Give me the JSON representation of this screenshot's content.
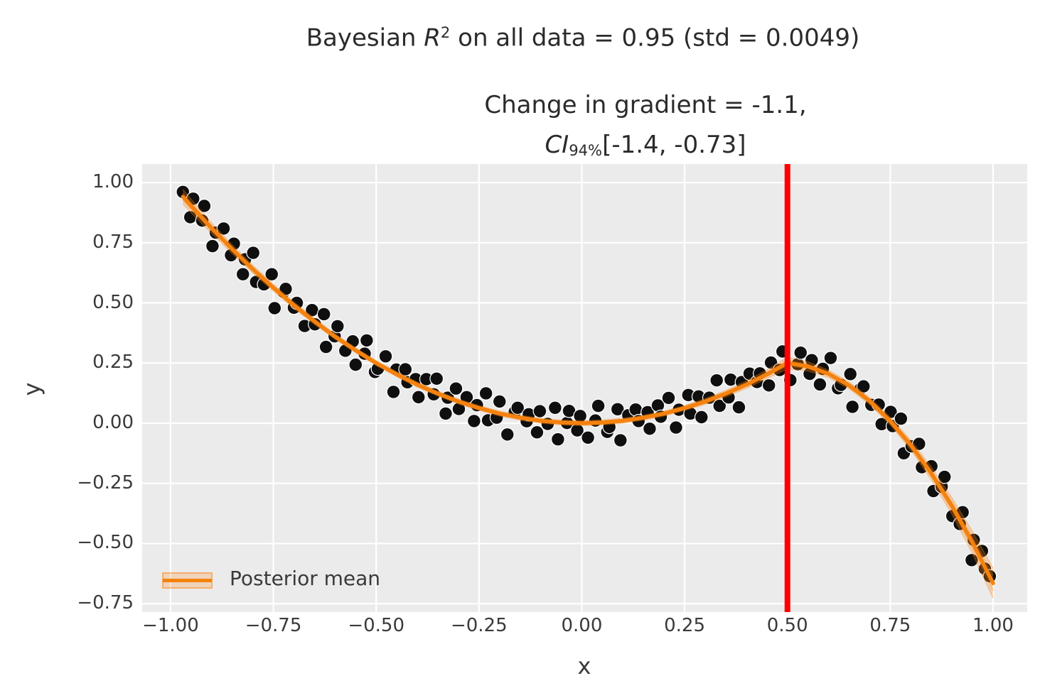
{
  "figure": {
    "title": {
      "text": "Bayesian R² on all data = 0.95 (std = 0.0049)",
      "prefix": "Bayesian ",
      "variable": "R",
      "superscript": "2",
      "suffix": " on all data = 0.95 (std = 0.0049)"
    },
    "subtitle": {
      "text": "Change in gradient = -1.1, CI₉₄%[-1.4, -0.73]",
      "line1": "Change in gradient = -1.1,",
      "ci_symbol": "CI",
      "ci_subscript": "94%",
      "ci_interval": "[-1.4, -0.73]"
    }
  },
  "axes": {
    "xlabel": "x",
    "ylabel": "y",
    "x_tick_labels": [
      "−1.00",
      "−0.75",
      "−0.50",
      "−0.25",
      "0.00",
      "0.25",
      "0.50",
      "0.75",
      "1.00"
    ],
    "y_tick_labels": [
      "1.00",
      "0.75",
      "0.50",
      "0.25",
      "0.00",
      "−0.25",
      "−0.50",
      "−0.75"
    ]
  },
  "legend": {
    "label": "Posterior mean",
    "position": "lower left"
  },
  "colors": {
    "background": "#ffffff",
    "plot_background": "#ebebeb",
    "grid": "#ffffff",
    "scatter": "#0f0f0f",
    "line": "#f5820e",
    "band": "#ff7f0e",
    "vline": "#ff0000",
    "title_text": "#2b2b2b",
    "tick_text": "#3a3a3a"
  },
  "chart_data": {
    "type": "scatter",
    "title": "Bayesian R^2 on all data = 0.95 (std = 0.0049)",
    "subtitle": "Change in gradient = -1.1, CI_94%[-1.4, -0.73]",
    "xlabel": "x",
    "ylabel": "y",
    "xlim": [
      -1.069,
      1.083
    ],
    "ylim": [
      -0.785,
      1.077
    ],
    "x_ticks": [
      -1.0,
      -0.75,
      -0.5,
      -0.25,
      0.0,
      0.25,
      0.5,
      0.75,
      1.0
    ],
    "y_ticks": [
      1.0,
      0.75,
      0.5,
      0.25,
      0.0,
      -0.25,
      -0.5,
      -0.75
    ],
    "grid": true,
    "legend_position": "lower left",
    "vline": {
      "x": 0.5,
      "color": "#ff0000"
    },
    "scatter": {
      "color": "#0f0f0f",
      "points": [
        [
          -0.97,
          0.961
        ],
        [
          -0.952,
          0.856
        ],
        [
          -0.945,
          0.933
        ],
        [
          -0.923,
          0.842
        ],
        [
          -0.918,
          0.903
        ],
        [
          -0.898,
          0.736
        ],
        [
          -0.89,
          0.792
        ],
        [
          -0.871,
          0.809
        ],
        [
          -0.853,
          0.698
        ],
        [
          -0.846,
          0.746
        ],
        [
          -0.824,
          0.619
        ],
        [
          -0.819,
          0.681
        ],
        [
          -0.799,
          0.708
        ],
        [
          -0.792,
          0.587
        ],
        [
          -0.773,
          0.577
        ],
        [
          -0.754,
          0.619
        ],
        [
          -0.747,
          0.478
        ],
        [
          -0.725,
          0.546
        ],
        [
          -0.72,
          0.558
        ],
        [
          -0.7,
          0.48
        ],
        [
          -0.693,
          0.5
        ],
        [
          -0.674,
          0.404
        ],
        [
          -0.656,
          0.47
        ],
        [
          -0.649,
          0.411
        ],
        [
          -0.627,
          0.453
        ],
        [
          -0.622,
          0.317
        ],
        [
          -0.601,
          0.361
        ],
        [
          -0.594,
          0.403
        ],
        [
          -0.575,
          0.301
        ],
        [
          -0.557,
          0.34
        ],
        [
          -0.55,
          0.243
        ],
        [
          -0.528,
          0.289
        ],
        [
          -0.523,
          0.344
        ],
        [
          -0.503,
          0.213
        ],
        [
          -0.496,
          0.226
        ],
        [
          -0.477,
          0.278
        ],
        [
          -0.458,
          0.13
        ],
        [
          -0.451,
          0.223
        ],
        [
          -0.429,
          0.224
        ],
        [
          -0.424,
          0.17
        ],
        [
          -0.404,
          0.183
        ],
        [
          -0.397,
          0.108
        ],
        [
          -0.378,
          0.183
        ],
        [
          -0.36,
          0.12
        ],
        [
          -0.353,
          0.185
        ],
        [
          -0.331,
          0.04
        ],
        [
          -0.326,
          0.106
        ],
        [
          -0.306,
          0.144
        ],
        [
          -0.299,
          0.059
        ],
        [
          -0.28,
          0.108
        ],
        [
          -0.262,
          0.009
        ],
        [
          -0.255,
          0.075
        ],
        [
          -0.233,
          0.124
        ],
        [
          -0.228,
          0.012
        ],
        [
          -0.207,
          0.023
        ],
        [
          -0.2,
          0.09
        ],
        [
          -0.181,
          -0.047
        ],
        [
          -0.163,
          0.047
        ],
        [
          -0.156,
          0.064
        ],
        [
          -0.134,
          0.008
        ],
        [
          -0.129,
          0.037
        ],
        [
          -0.109,
          -0.038
        ],
        [
          -0.102,
          0.05
        ],
        [
          -0.083,
          -0.003
        ],
        [
          -0.065,
          0.064
        ],
        [
          -0.058,
          -0.067
        ],
        [
          -0.036,
          0.001
        ],
        [
          -0.031,
          0.051
        ],
        [
          -0.011,
          -0.03
        ],
        [
          -0.004,
          0.03
        ],
        [
          0.015,
          -0.06
        ],
        [
          0.033,
          0.011
        ],
        [
          0.04,
          0.072
        ],
        [
          0.062,
          -0.036
        ],
        [
          0.067,
          -0.016
        ],
        [
          0.087,
          0.058
        ],
        [
          0.094,
          -0.071
        ],
        [
          0.113,
          0.033
        ],
        [
          0.131,
          0.057
        ],
        [
          0.138,
          0.009
        ],
        [
          0.16,
          0.046
        ],
        [
          0.165,
          -0.023
        ],
        [
          0.185,
          0.074
        ],
        [
          0.192,
          0.027
        ],
        [
          0.211,
          0.105
        ],
        [
          0.229,
          -0.018
        ],
        [
          0.236,
          0.056
        ],
        [
          0.259,
          0.117
        ],
        [
          0.264,
          0.04
        ],
        [
          0.284,
          0.111
        ],
        [
          0.291,
          0.025
        ],
        [
          0.31,
          0.106
        ],
        [
          0.328,
          0.178
        ],
        [
          0.335,
          0.072
        ],
        [
          0.357,
          0.107
        ],
        [
          0.362,
          0.181
        ],
        [
          0.382,
          0.066
        ],
        [
          0.389,
          0.171
        ],
        [
          0.408,
          0.206
        ],
        [
          0.426,
          0.171
        ],
        [
          0.433,
          0.207
        ],
        [
          0.455,
          0.157
        ],
        [
          0.46,
          0.252
        ],
        [
          0.481,
          0.221
        ],
        [
          0.488,
          0.298
        ],
        [
          0.507,
          0.179
        ],
        [
          0.525,
          0.245
        ],
        [
          0.532,
          0.293
        ],
        [
          0.554,
          0.205
        ],
        [
          0.559,
          0.262
        ],
        [
          0.579,
          0.161
        ],
        [
          0.586,
          0.226
        ],
        [
          0.605,
          0.271
        ],
        [
          0.623,
          0.145
        ],
        [
          0.63,
          0.159
        ],
        [
          0.653,
          0.204
        ],
        [
          0.658,
          0.068
        ],
        [
          0.678,
          0.143
        ],
        [
          0.685,
          0.153
        ],
        [
          0.704,
          0.076
        ],
        [
          0.722,
          0.077
        ],
        [
          0.729,
          -0.004
        ],
        [
          0.751,
          0.047
        ],
        [
          0.756,
          -0.012
        ],
        [
          0.776,
          0.019
        ],
        [
          0.783,
          -0.125
        ],
        [
          0.802,
          -0.096
        ],
        [
          0.82,
          -0.086
        ],
        [
          0.827,
          -0.183
        ],
        [
          0.85,
          -0.179
        ],
        [
          0.855,
          -0.282
        ],
        [
          0.875,
          -0.264
        ],
        [
          0.882,
          -0.223
        ],
        [
          0.901,
          -0.386
        ],
        [
          0.919,
          -0.419
        ],
        [
          0.926,
          -0.37
        ],
        [
          0.948,
          -0.569
        ],
        [
          0.953,
          -0.485
        ],
        [
          0.973,
          -0.531
        ],
        [
          0.98,
          -0.605
        ],
        [
          0.992,
          -0.636
        ]
      ]
    },
    "posterior_mean": {
      "label": "Posterior mean",
      "color": "#f5820e",
      "x": [
        -0.97,
        -0.95,
        -0.9,
        -0.85,
        -0.8,
        -0.75,
        -0.7,
        -0.65,
        -0.6,
        -0.55,
        -0.5,
        -0.45,
        -0.4,
        -0.35,
        -0.3,
        -0.25,
        -0.2,
        -0.15,
        -0.1,
        -0.05,
        0.0,
        0.05,
        0.1,
        0.15,
        0.2,
        0.25,
        0.3,
        0.35,
        0.4,
        0.45,
        0.5,
        0.55,
        0.6,
        0.65,
        0.7,
        0.75,
        0.8,
        0.85,
        0.9,
        0.95,
        1.0
      ],
      "y": [
        0.941,
        0.903,
        0.81,
        0.723,
        0.64,
        0.563,
        0.49,
        0.423,
        0.36,
        0.303,
        0.25,
        0.203,
        0.16,
        0.123,
        0.09,
        0.063,
        0.04,
        0.023,
        0.01,
        0.003,
        0.0,
        0.003,
        0.01,
        0.023,
        0.04,
        0.063,
        0.09,
        0.123,
        0.16,
        0.203,
        0.25,
        0.236,
        0.205,
        0.157,
        0.092,
        0.009,
        -0.091,
        -0.209,
        -0.344,
        -0.496,
        -0.665
      ],
      "band_halfwidth": [
        0.03,
        0.028,
        0.022,
        0.018,
        0.016,
        0.014,
        0.013,
        0.012,
        0.011,
        0.01,
        0.01,
        0.01,
        0.01,
        0.01,
        0.01,
        0.01,
        0.01,
        0.01,
        0.01,
        0.01,
        0.01,
        0.01,
        0.01,
        0.01,
        0.01,
        0.01,
        0.012,
        0.013,
        0.015,
        0.018,
        0.024,
        0.019,
        0.015,
        0.014,
        0.014,
        0.016,
        0.02,
        0.026,
        0.034,
        0.046,
        0.062
      ]
    }
  }
}
